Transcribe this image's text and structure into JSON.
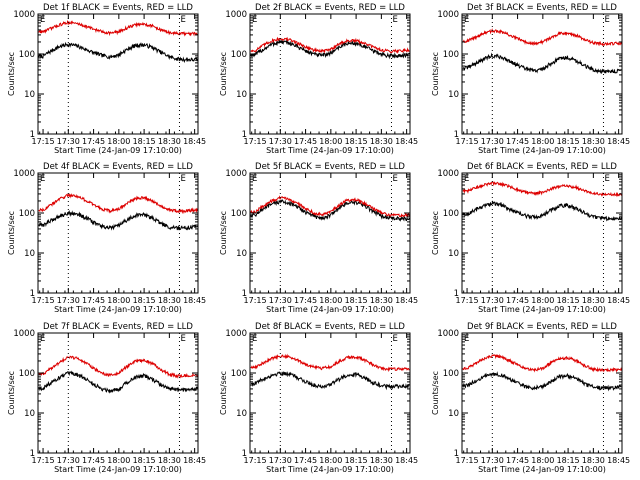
{
  "colors": {
    "events": "#000000",
    "lld": "#dd0000",
    "axes": "#000000",
    "marker": "#000000"
  },
  "common": {
    "xlabel": "Start Time (24-Jan-09 17:10:00)",
    "ylabel": "Counts/sec",
    "ytick_labels": [
      "1",
      "10",
      "100",
      "1000"
    ],
    "xtick_labels": [
      "17:15",
      "17:30",
      "17:45",
      "18:00",
      "18:15",
      "18:30",
      "18:45"
    ],
    "marker_label": "E"
  },
  "chart_data": [
    {
      "type": "line",
      "title": "Det 1f BLACK = Events, RED = LLD",
      "yscale": "log",
      "ylim": [
        1,
        1000
      ],
      "x_minutes_after_1710": [
        5,
        10,
        15,
        20,
        25,
        30,
        35,
        40,
        45,
        50,
        55,
        60,
        65,
        70,
        75,
        80,
        85,
        90,
        95
      ],
      "series": [
        {
          "name": "Events",
          "values": [
            88,
            120,
            155,
            175,
            160,
            132,
            108,
            92,
            85,
            95,
            130,
            165,
            170,
            145,
            110,
            85,
            75,
            72,
            72
          ]
        },
        {
          "name": "LLD",
          "values": [
            360,
            440,
            540,
            620,
            580,
            500,
            420,
            360,
            335,
            360,
            450,
            540,
            560,
            500,
            400,
            340,
            325,
            320,
            320
          ]
        }
      ]
    },
    {
      "type": "line",
      "title": "Det 2f BLACK = Events, RED = LLD",
      "yscale": "log",
      "ylim": [
        1,
        1000
      ],
      "x_minutes_after_1710": [
        5,
        10,
        15,
        20,
        25,
        30,
        35,
        40,
        45,
        50,
        55,
        60,
        65,
        70,
        75,
        80,
        85,
        90,
        95
      ],
      "series": [
        {
          "name": "Events",
          "values": [
            95,
            130,
            175,
            200,
            190,
            155,
            120,
            98,
            92,
            105,
            150,
            185,
            185,
            155,
            120,
            98,
            90,
            92,
            95
          ]
        },
        {
          "name": "LLD",
          "values": [
            120,
            165,
            215,
            240,
            230,
            190,
            150,
            125,
            118,
            130,
            180,
            215,
            215,
            185,
            150,
            125,
            118,
            120,
            125
          ]
        }
      ]
    },
    {
      "type": "line",
      "title": "Det 3f BLACK = Events, RED = LLD",
      "yscale": "log",
      "ylim": [
        1,
        1000
      ],
      "x_minutes_after_1710": [
        5,
        10,
        15,
        20,
        25,
        30,
        35,
        40,
        45,
        50,
        55,
        60,
        65,
        70,
        75,
        80,
        85,
        90,
        95
      ],
      "series": [
        {
          "name": "Events",
          "values": [
            45,
            58,
            75,
            90,
            85,
            68,
            52,
            42,
            38,
            42,
            58,
            78,
            82,
            68,
            50,
            40,
            37,
            36,
            38
          ]
        },
        {
          "name": "LLD",
          "values": [
            210,
            260,
            330,
            380,
            360,
            300,
            240,
            200,
            185,
            200,
            260,
            330,
            340,
            290,
            225,
            190,
            180,
            182,
            185
          ]
        }
      ]
    },
    {
      "type": "line",
      "title": "Det 4f BLACK = Events, RED = LLD",
      "yscale": "log",
      "ylim": [
        1,
        1000
      ],
      "x_minutes_after_1710": [
        5,
        10,
        15,
        20,
        25,
        30,
        35,
        40,
        45,
        50,
        55,
        60,
        65,
        70,
        75,
        80,
        85,
        90,
        95
      ],
      "series": [
        {
          "name": "Events",
          "values": [
            50,
            65,
            85,
            100,
            95,
            78,
            58,
            46,
            42,
            48,
            68,
            88,
            90,
            75,
            55,
            44,
            42,
            43,
            45
          ]
        },
        {
          "name": "LLD",
          "values": [
            120,
            160,
            225,
            280,
            265,
            210,
            160,
            125,
            112,
            125,
            175,
            230,
            240,
            200,
            150,
            120,
            112,
            112,
            118
          ]
        }
      ]
    },
    {
      "type": "line",
      "title": "Det 5f BLACK = Events, RED = LLD",
      "yscale": "log",
      "ylim": [
        1,
        1000
      ],
      "x_minutes_after_1710": [
        5,
        10,
        15,
        20,
        25,
        30,
        35,
        40,
        45,
        50,
        55,
        60,
        65,
        70,
        75,
        80,
        85,
        90,
        95
      ],
      "series": [
        {
          "name": "Events",
          "values": [
            90,
            125,
            165,
            195,
            180,
            140,
            105,
            82,
            75,
            88,
            135,
            180,
            185,
            150,
            110,
            85,
            75,
            72,
            72
          ]
        },
        {
          "name": "LLD",
          "values": [
            105,
            150,
            200,
            240,
            225,
            175,
            130,
            100,
            92,
            105,
            160,
            210,
            215,
            175,
            130,
            100,
            90,
            88,
            88
          ]
        }
      ]
    },
    {
      "type": "line",
      "title": "Det 6f BLACK = Events, RED = LLD",
      "yscale": "log",
      "ylim": [
        1,
        1000
      ],
      "x_minutes_after_1710": [
        5,
        10,
        15,
        20,
        25,
        30,
        35,
        40,
        45,
        50,
        55,
        60,
        65,
        70,
        75,
        80,
        85,
        90,
        95
      ],
      "series": [
        {
          "name": "Events",
          "values": [
            90,
            120,
            150,
            175,
            160,
            128,
            100,
            85,
            78,
            88,
            118,
            150,
            155,
            130,
            98,
            80,
            75,
            72,
            75
          ]
        },
        {
          "name": "LLD",
          "values": [
            350,
            420,
            500,
            560,
            530,
            460,
            380,
            330,
            310,
            330,
            400,
            470,
            480,
            430,
            350,
            310,
            295,
            290,
            290
          ]
        }
      ]
    },
    {
      "type": "line",
      "title": "Det 7f BLACK = Events, RED = LLD",
      "yscale": "log",
      "ylim": [
        1,
        1000
      ],
      "x_minutes_after_1710": [
        5,
        10,
        15,
        20,
        25,
        30,
        35,
        40,
        45,
        50,
        55,
        60,
        65,
        70,
        75,
        80,
        85,
        90,
        95
      ],
      "series": [
        {
          "name": "Events",
          "values": [
            42,
            58,
            78,
            98,
            92,
            72,
            52,
            40,
            36,
            40,
            58,
            80,
            85,
            70,
            50,
            40,
            38,
            38,
            40
          ]
        },
        {
          "name": "LLD",
          "values": [
            95,
            130,
            185,
            250,
            235,
            180,
            130,
            98,
            88,
            98,
            145,
            200,
            210,
            170,
            120,
            92,
            85,
            85,
            88
          ]
        }
      ]
    },
    {
      "type": "line",
      "title": "Det 8f BLACK = Events, RED = LLD",
      "yscale": "log",
      "ylim": [
        1,
        1000
      ],
      "x_minutes_after_1710": [
        5,
        10,
        15,
        20,
        25,
        30,
        35,
        40,
        45,
        50,
        55,
        60,
        65,
        70,
        75,
        80,
        85,
        90,
        95
      ],
      "series": [
        {
          "name": "Events",
          "values": [
            55,
            70,
            88,
            100,
            95,
            78,
            60,
            50,
            46,
            52,
            70,
            90,
            92,
            78,
            58,
            48,
            45,
            46,
            48
          ]
        },
        {
          "name": "LLD",
          "values": [
            140,
            180,
            230,
            270,
            255,
            210,
            165,
            140,
            130,
            145,
            195,
            245,
            250,
            210,
            160,
            132,
            125,
            125,
            130
          ]
        }
      ]
    },
    {
      "type": "line",
      "title": "Det 9f BLACK = Events, RED = LLD",
      "yscale": "log",
      "ylim": [
        1,
        1000
      ],
      "x_minutes_after_1710": [
        5,
        10,
        15,
        20,
        25,
        30,
        35,
        40,
        45,
        50,
        55,
        60,
        65,
        70,
        75,
        80,
        85,
        90,
        95
      ],
      "series": [
        {
          "name": "Events",
          "values": [
            48,
            62,
            80,
            95,
            90,
            72,
            55,
            45,
            42,
            46,
            62,
            82,
            85,
            72,
            52,
            44,
            42,
            42,
            44
          ]
        },
        {
          "name": "LLD",
          "values": [
            130,
            170,
            225,
            270,
            255,
            205,
            160,
            130,
            120,
            132,
            180,
            230,
            240,
            200,
            150,
            125,
            118,
            118,
            122
          ]
        }
      ]
    }
  ]
}
